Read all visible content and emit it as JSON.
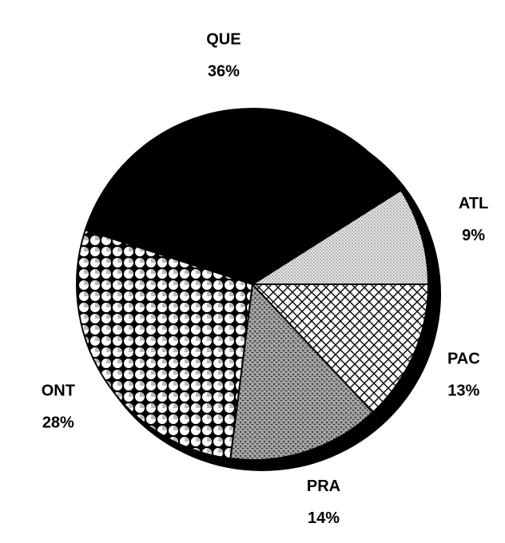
{
  "chart_data": {
    "type": "pie",
    "categories": [
      "ATL",
      "QUE",
      "ONT",
      "PRA",
      "PAC"
    ],
    "values": [
      9,
      36,
      28,
      14,
      13
    ],
    "value_labels": [
      "9%",
      "36%",
      "28%",
      "14%",
      "13%"
    ]
  }
}
